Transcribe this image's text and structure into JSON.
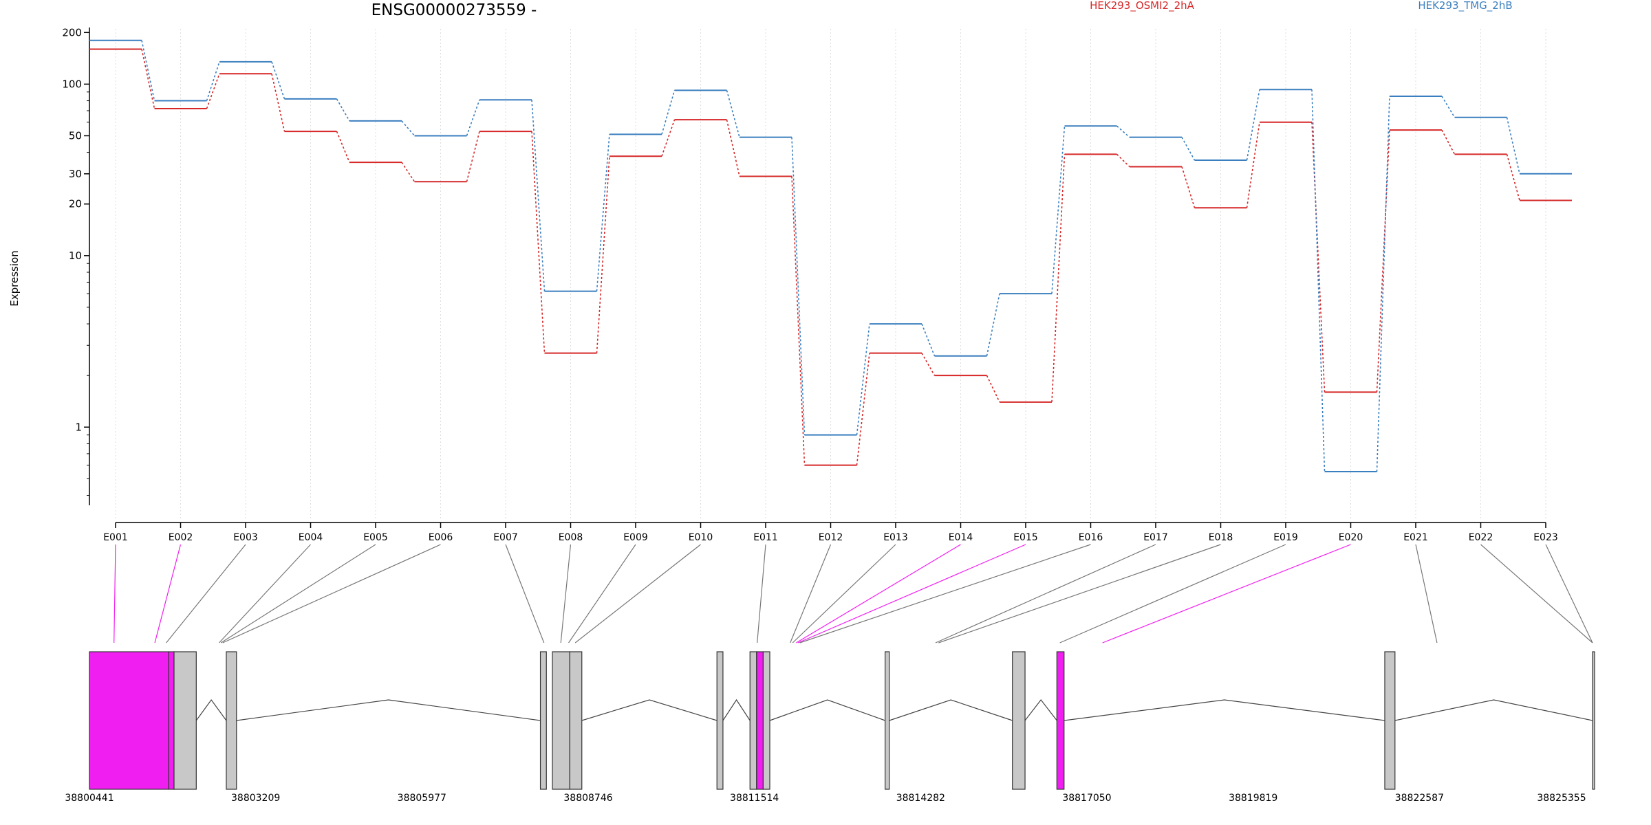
{
  "chart_data": {
    "type": "line",
    "title": "ENSG00000273559 -",
    "ylabel": "Expression",
    "xlabel": "",
    "yscale": "log",
    "ylim": [
      0.35,
      210
    ],
    "yticks": [
      1,
      10,
      20,
      30,
      50,
      100,
      200
    ],
    "grid": "vertical dotted at exons",
    "legend_position": "top",
    "categories": [
      "E001",
      "E002",
      "E003",
      "E004",
      "E005",
      "E006",
      "E007",
      "E008",
      "E009",
      "E010",
      "E011",
      "E012",
      "E013",
      "E014",
      "E015",
      "E016",
      "E017",
      "E018",
      "E019",
      "E020",
      "E021",
      "E022",
      "E023"
    ],
    "series": [
      {
        "name": "HEK293_OSMI2_2hA",
        "color": "#d62728",
        "values": [
          160,
          72,
          115,
          53,
          35,
          27,
          53,
          2.7,
          38,
          62,
          29,
          0.6,
          2.7,
          2.0,
          1.4,
          39,
          33,
          19,
          60,
          1.6,
          54,
          39,
          21
        ]
      },
      {
        "name": "HEK293_TMG_2hB",
        "color": "#3b7fbf",
        "values": [
          180,
          80,
          135,
          82,
          61,
          50,
          81,
          6.2,
          51,
          92,
          49,
          0.9,
          4.0,
          2.6,
          6.0,
          57,
          49,
          36,
          93,
          0.55,
          85,
          64,
          30
        ]
      }
    ],
    "genomic_axis": {
      "ticks": [
        "38800441",
        "38803209",
        "38805977",
        "38808746",
        "38811514",
        "38814282",
        "38817050",
        "38819819",
        "38822587",
        "38825355"
      ],
      "start": 38800441,
      "end": 38825355
    },
    "highlight_color": "#f01ef0",
    "exon_color": "#c8c8c8",
    "exon_connectors": [
      {
        "exon": "E001",
        "pos": 38800850,
        "highlight": true
      },
      {
        "exon": "E002",
        "pos": 38801530,
        "highlight": true
      },
      {
        "exon": "E003",
        "pos": 38801720,
        "highlight": false
      },
      {
        "exon": "E004",
        "pos": 38802600,
        "highlight": false
      },
      {
        "exon": "E005",
        "pos": 38802630,
        "highlight": false
      },
      {
        "exon": "E006",
        "pos": 38802660,
        "highlight": false
      },
      {
        "exon": "E007",
        "pos": 38808010,
        "highlight": false
      },
      {
        "exon": "E008",
        "pos": 38808290,
        "highlight": false
      },
      {
        "exon": "E009",
        "pos": 38808420,
        "highlight": false
      },
      {
        "exon": "E010",
        "pos": 38808530,
        "highlight": false
      },
      {
        "exon": "E011",
        "pos": 38811560,
        "highlight": false
      },
      {
        "exon": "E012",
        "pos": 38812110,
        "highlight": false
      },
      {
        "exon": "E013",
        "pos": 38812150,
        "highlight": false
      },
      {
        "exon": "E014",
        "pos": 38812210,
        "highlight": true
      },
      {
        "exon": "E015",
        "pos": 38812240,
        "highlight": true
      },
      {
        "exon": "E016",
        "pos": 38812270,
        "highlight": false
      },
      {
        "exon": "E017",
        "pos": 38814530,
        "highlight": false
      },
      {
        "exon": "E018",
        "pos": 38814580,
        "highlight": false
      },
      {
        "exon": "E019",
        "pos": 38816600,
        "highlight": false
      },
      {
        "exon": "E020",
        "pos": 38817310,
        "highlight": true
      },
      {
        "exon": "E021",
        "pos": 38822880,
        "highlight": false
      },
      {
        "exon": "E022",
        "pos": 38827110,
        "highlight": false
      },
      {
        "exon": "E023",
        "pos": 38827180,
        "highlight": false
      }
    ],
    "exon_blocks": [
      {
        "start": 38800441,
        "end": 38801760,
        "highlight": true
      },
      {
        "start": 38801760,
        "end": 38801850,
        "highlight": true
      },
      {
        "start": 38801850,
        "end": 38802220,
        "highlight": false
      },
      {
        "start": 38802720,
        "end": 38802890,
        "highlight": false
      },
      {
        "start": 38807950,
        "end": 38808050,
        "highlight": false
      },
      {
        "start": 38808150,
        "end": 38808440,
        "highlight": false
      },
      {
        "start": 38808440,
        "end": 38808640,
        "highlight": false
      },
      {
        "start": 38810890,
        "end": 38810990,
        "highlight": false
      },
      {
        "start": 38811440,
        "end": 38811550,
        "highlight": false
      },
      {
        "start": 38811550,
        "end": 38811660,
        "highlight": true
      },
      {
        "start": 38811660,
        "end": 38811770,
        "highlight": false
      },
      {
        "start": 38813690,
        "end": 38813760,
        "highlight": false
      },
      {
        "start": 38815810,
        "end": 38816020,
        "highlight": false
      },
      {
        "start": 38816550,
        "end": 38816670,
        "highlight": true
      },
      {
        "start": 38822010,
        "end": 38822180,
        "highlight": false
      },
      {
        "start": 38826410,
        "end": 38826610,
        "highlight": false
      }
    ],
    "introns": [
      [
        38802220,
        38802720
      ],
      [
        38802890,
        38807950
      ],
      [
        38808640,
        38810890
      ],
      [
        38810990,
        38811440
      ],
      [
        38811770,
        38813690
      ],
      [
        38813760,
        38815810
      ],
      [
        38816020,
        38816550
      ],
      [
        38816670,
        38822010
      ],
      [
        38822180,
        38826410
      ]
    ]
  }
}
